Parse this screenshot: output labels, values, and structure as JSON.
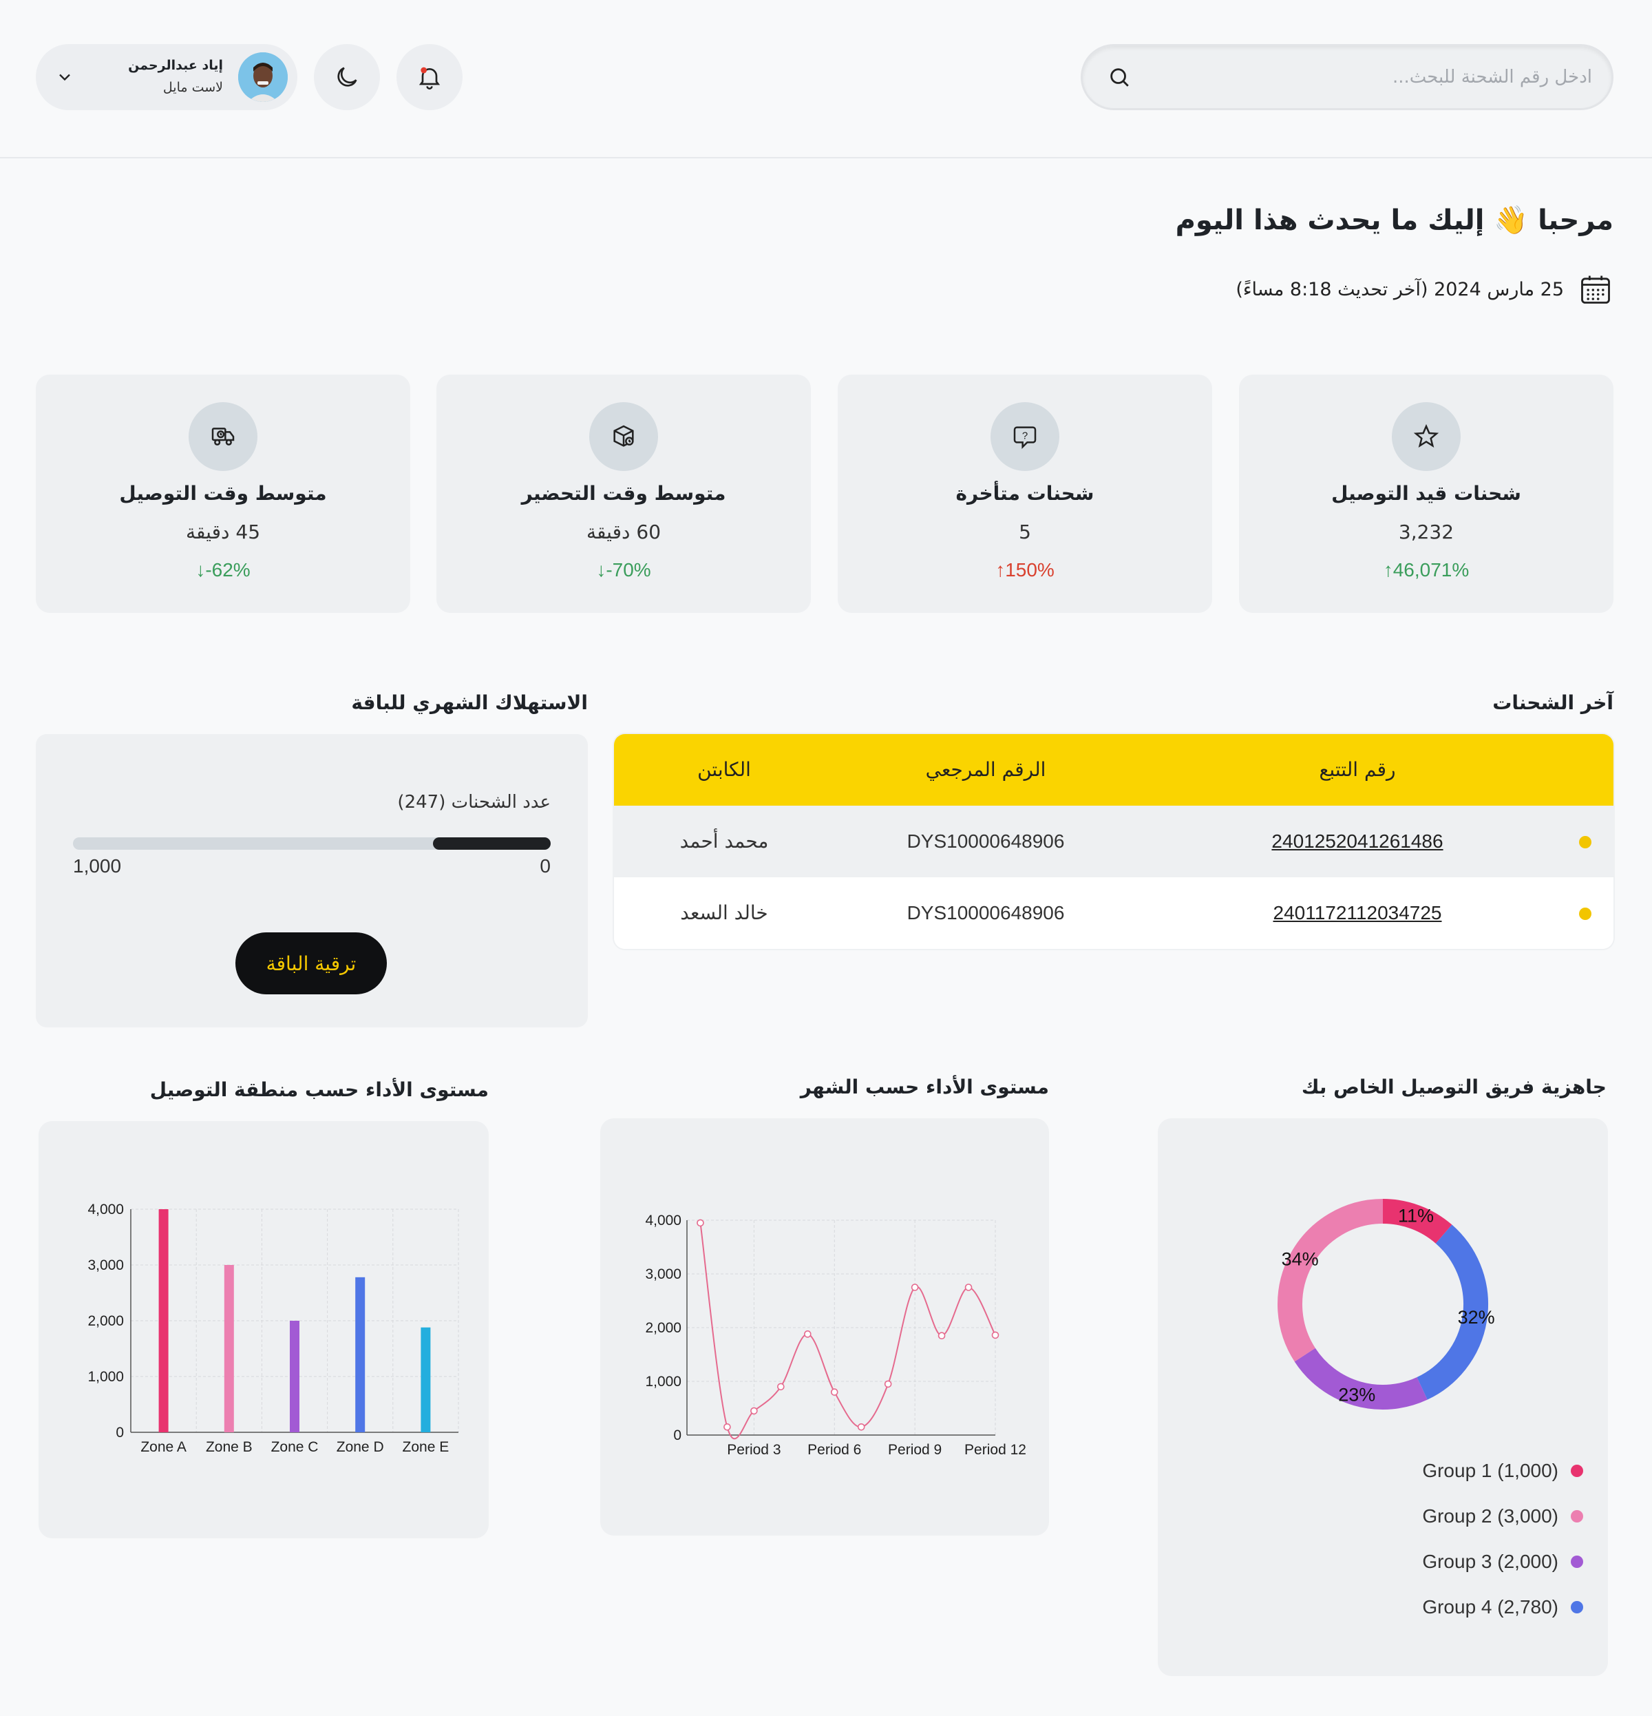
{
  "header": {
    "search_placeholder": "ادخل رقم الشحنة للبحث...",
    "user": {
      "name": "إياد عبدالرحمن",
      "role": "لاست مايل"
    }
  },
  "greeting": {
    "title": "مرحبا 👋 إليك ما يحدث هذا اليوم",
    "date": "25 مارس 2024 (آخر تحديث 8:18 مساءً)"
  },
  "stats": [
    {
      "title": "شحنات قيد التوصيل",
      "value": "3,232",
      "change": "46,071%",
      "direction": "up",
      "color": "#3a9d5b",
      "icon": "star-icon"
    },
    {
      "title": "شحنات متأخرة",
      "value": "5",
      "change": "150%",
      "direction": "up",
      "color": "#d9412f",
      "icon": "chat-question-icon"
    },
    {
      "title": "متوسط وقت التحضير",
      "value": "60 دقيقة",
      "change": "-70%",
      "direction": "down",
      "color": "#3a9d5b",
      "icon": "package-icon"
    },
    {
      "title": "متوسط وقت التوصيل",
      "value": "45 دقيقة",
      "change": "-62%",
      "direction": "down",
      "color": "#3a9d5b",
      "icon": "truck-icon"
    }
  ],
  "shipments": {
    "title": "آخر الشحنات",
    "columns": [
      "رقم التتبع",
      "الرقم المرجعي",
      "الكابتن"
    ],
    "rows": [
      {
        "tracking": "2401252041261486",
        "reference": "DYS10000648906",
        "captain": "محمد أحمد"
      },
      {
        "tracking": "2401172112034725",
        "reference": "DYS10000648906",
        "captain": "خالد السعد"
      }
    ]
  },
  "usage": {
    "title": "الاستهلاك الشهري للباقة",
    "label": "عدد الشحنات (247)",
    "min": "0",
    "max": "1,000",
    "used": 247,
    "limit": 1000,
    "button": "ترقية الباقة"
  },
  "charts": {
    "readiness_title": "جاهزية فريق التوصيل الخاص بك",
    "monthly_title": "مستوى الأداء حسب الشهر",
    "zone_title": "مستوى الأداء حسب منطقة التوصيل"
  },
  "chart_data": [
    {
      "type": "pie",
      "variant": "donut",
      "labels": [
        "Group 1 (1,000)",
        "Group 2 (3,000)",
        "Group 3 (2,000)",
        "Group 4 (2,780)"
      ],
      "values": [
        1000,
        3000,
        2000,
        2780
      ],
      "percent_labels": [
        "11%",
        "34%",
        "23%",
        "32%"
      ],
      "colors": [
        "#e8336f",
        "#ec7fb0",
        "#a25ad4",
        "#4f76e6"
      ]
    },
    {
      "type": "line",
      "x": [
        1,
        2,
        3,
        4,
        5,
        6,
        7,
        8,
        9,
        10,
        11,
        12
      ],
      "x_tick_labels": [
        "Period 3",
        "Period 6",
        "Period 9",
        "Period 12"
      ],
      "x_ticks_at": [
        3,
        6,
        9,
        12
      ],
      "y": [
        3950,
        150,
        450,
        900,
        1880,
        800,
        150,
        950,
        2750,
        1850,
        2750,
        1860
      ],
      "ylim": [
        0,
        4000
      ],
      "y_ticks": [
        "0",
        "1,000",
        "2,000",
        "3,000",
        "4,000"
      ],
      "color": "#e56a8e"
    },
    {
      "type": "bar",
      "categories": [
        "Zone A",
        "Zone B",
        "Zone C",
        "Zone D",
        "Zone E"
      ],
      "values": [
        4000,
        3000,
        2000,
        2780,
        1880
      ],
      "colors": [
        "#e8336f",
        "#ec7fb0",
        "#a25ad4",
        "#4f76e6",
        "#23aede"
      ],
      "ylim": [
        0,
        4000
      ],
      "y_ticks": [
        "0",
        "1,000",
        "2,000",
        "3,000",
        "4,000"
      ]
    }
  ]
}
